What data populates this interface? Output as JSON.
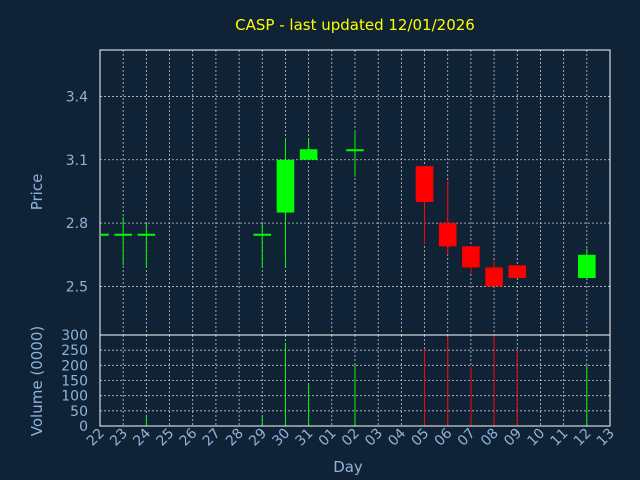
{
  "title": "CASP - last updated 12/01/2026",
  "colors": {
    "background": "#0f2236",
    "title": "#ffff00",
    "axis_text": "#8fb4d8",
    "up": "#00ff00",
    "down": "#ff0000",
    "grid": "#c8c8c8",
    "frame": "#ffffff"
  },
  "chart_data": {
    "type": "candlestick",
    "grid": true,
    "xlabel": "Day",
    "categories": [
      "22",
      "23",
      "24",
      "25",
      "26",
      "27",
      "28",
      "29",
      "30",
      "31",
      "01",
      "02",
      "03",
      "04",
      "05",
      "06",
      "07",
      "08",
      "09",
      "10",
      "11",
      "12",
      "13"
    ],
    "price_panel": {
      "ylabel": "Price",
      "ylim": [
        2.27,
        3.62
      ],
      "yticks": [
        2.5,
        2.8,
        3.1,
        3.4
      ],
      "ytick_labels": [
        "2.5",
        "2.8",
        "3.1",
        "3.4"
      ]
    },
    "volume_panel": {
      "ylabel": "Volume (0000)",
      "ylim": [
        0,
        300
      ],
      "yticks": [
        0,
        50,
        100,
        150,
        200,
        250,
        300
      ],
      "ytick_labels": [
        "0",
        "50",
        "100",
        "150",
        "200",
        "250",
        "300"
      ]
    },
    "candles": [
      {
        "day": "22",
        "open": 2.745,
        "high": 2.745,
        "low": 2.745,
        "close": 2.745,
        "volume": 0
      },
      {
        "day": "23",
        "open": 2.745,
        "high": 2.83,
        "low": 2.6,
        "close": 2.745,
        "volume": 0
      },
      {
        "day": "24",
        "open": 2.745,
        "high": 2.8,
        "low": 2.59,
        "close": 2.745,
        "volume": 30
      },
      {
        "day": "29",
        "open": 2.745,
        "high": 2.8,
        "low": 2.59,
        "close": 2.745,
        "volume": 30
      },
      {
        "day": "30",
        "open": 2.85,
        "high": 3.2,
        "low": 2.59,
        "close": 3.1,
        "volume": 275
      },
      {
        "day": "31",
        "open": 3.1,
        "high": 3.2,
        "low": 3.1,
        "close": 3.15,
        "volume": 135
      },
      {
        "day": "02",
        "open": 3.145,
        "high": 3.24,
        "low": 3.02,
        "close": 3.145,
        "volume": 200
      },
      {
        "day": "05",
        "open": 3.07,
        "high": 3.07,
        "low": 2.7,
        "close": 2.9,
        "volume": 255
      },
      {
        "day": "06",
        "open": 2.8,
        "high": 3.0,
        "low": 2.65,
        "close": 2.69,
        "volume": 295
      },
      {
        "day": "07",
        "open": 2.69,
        "high": 2.69,
        "low": 2.56,
        "close": 2.59,
        "volume": 195
      },
      {
        "day": "08",
        "open": 2.59,
        "high": 2.62,
        "low": 2.5,
        "close": 2.5,
        "volume": 300
      },
      {
        "day": "09",
        "open": 2.6,
        "high": 2.6,
        "low": 2.54,
        "close": 2.54,
        "volume": 250
      },
      {
        "day": "12",
        "open": 2.54,
        "high": 2.68,
        "low": 2.53,
        "close": 2.65,
        "volume": 200
      }
    ]
  }
}
